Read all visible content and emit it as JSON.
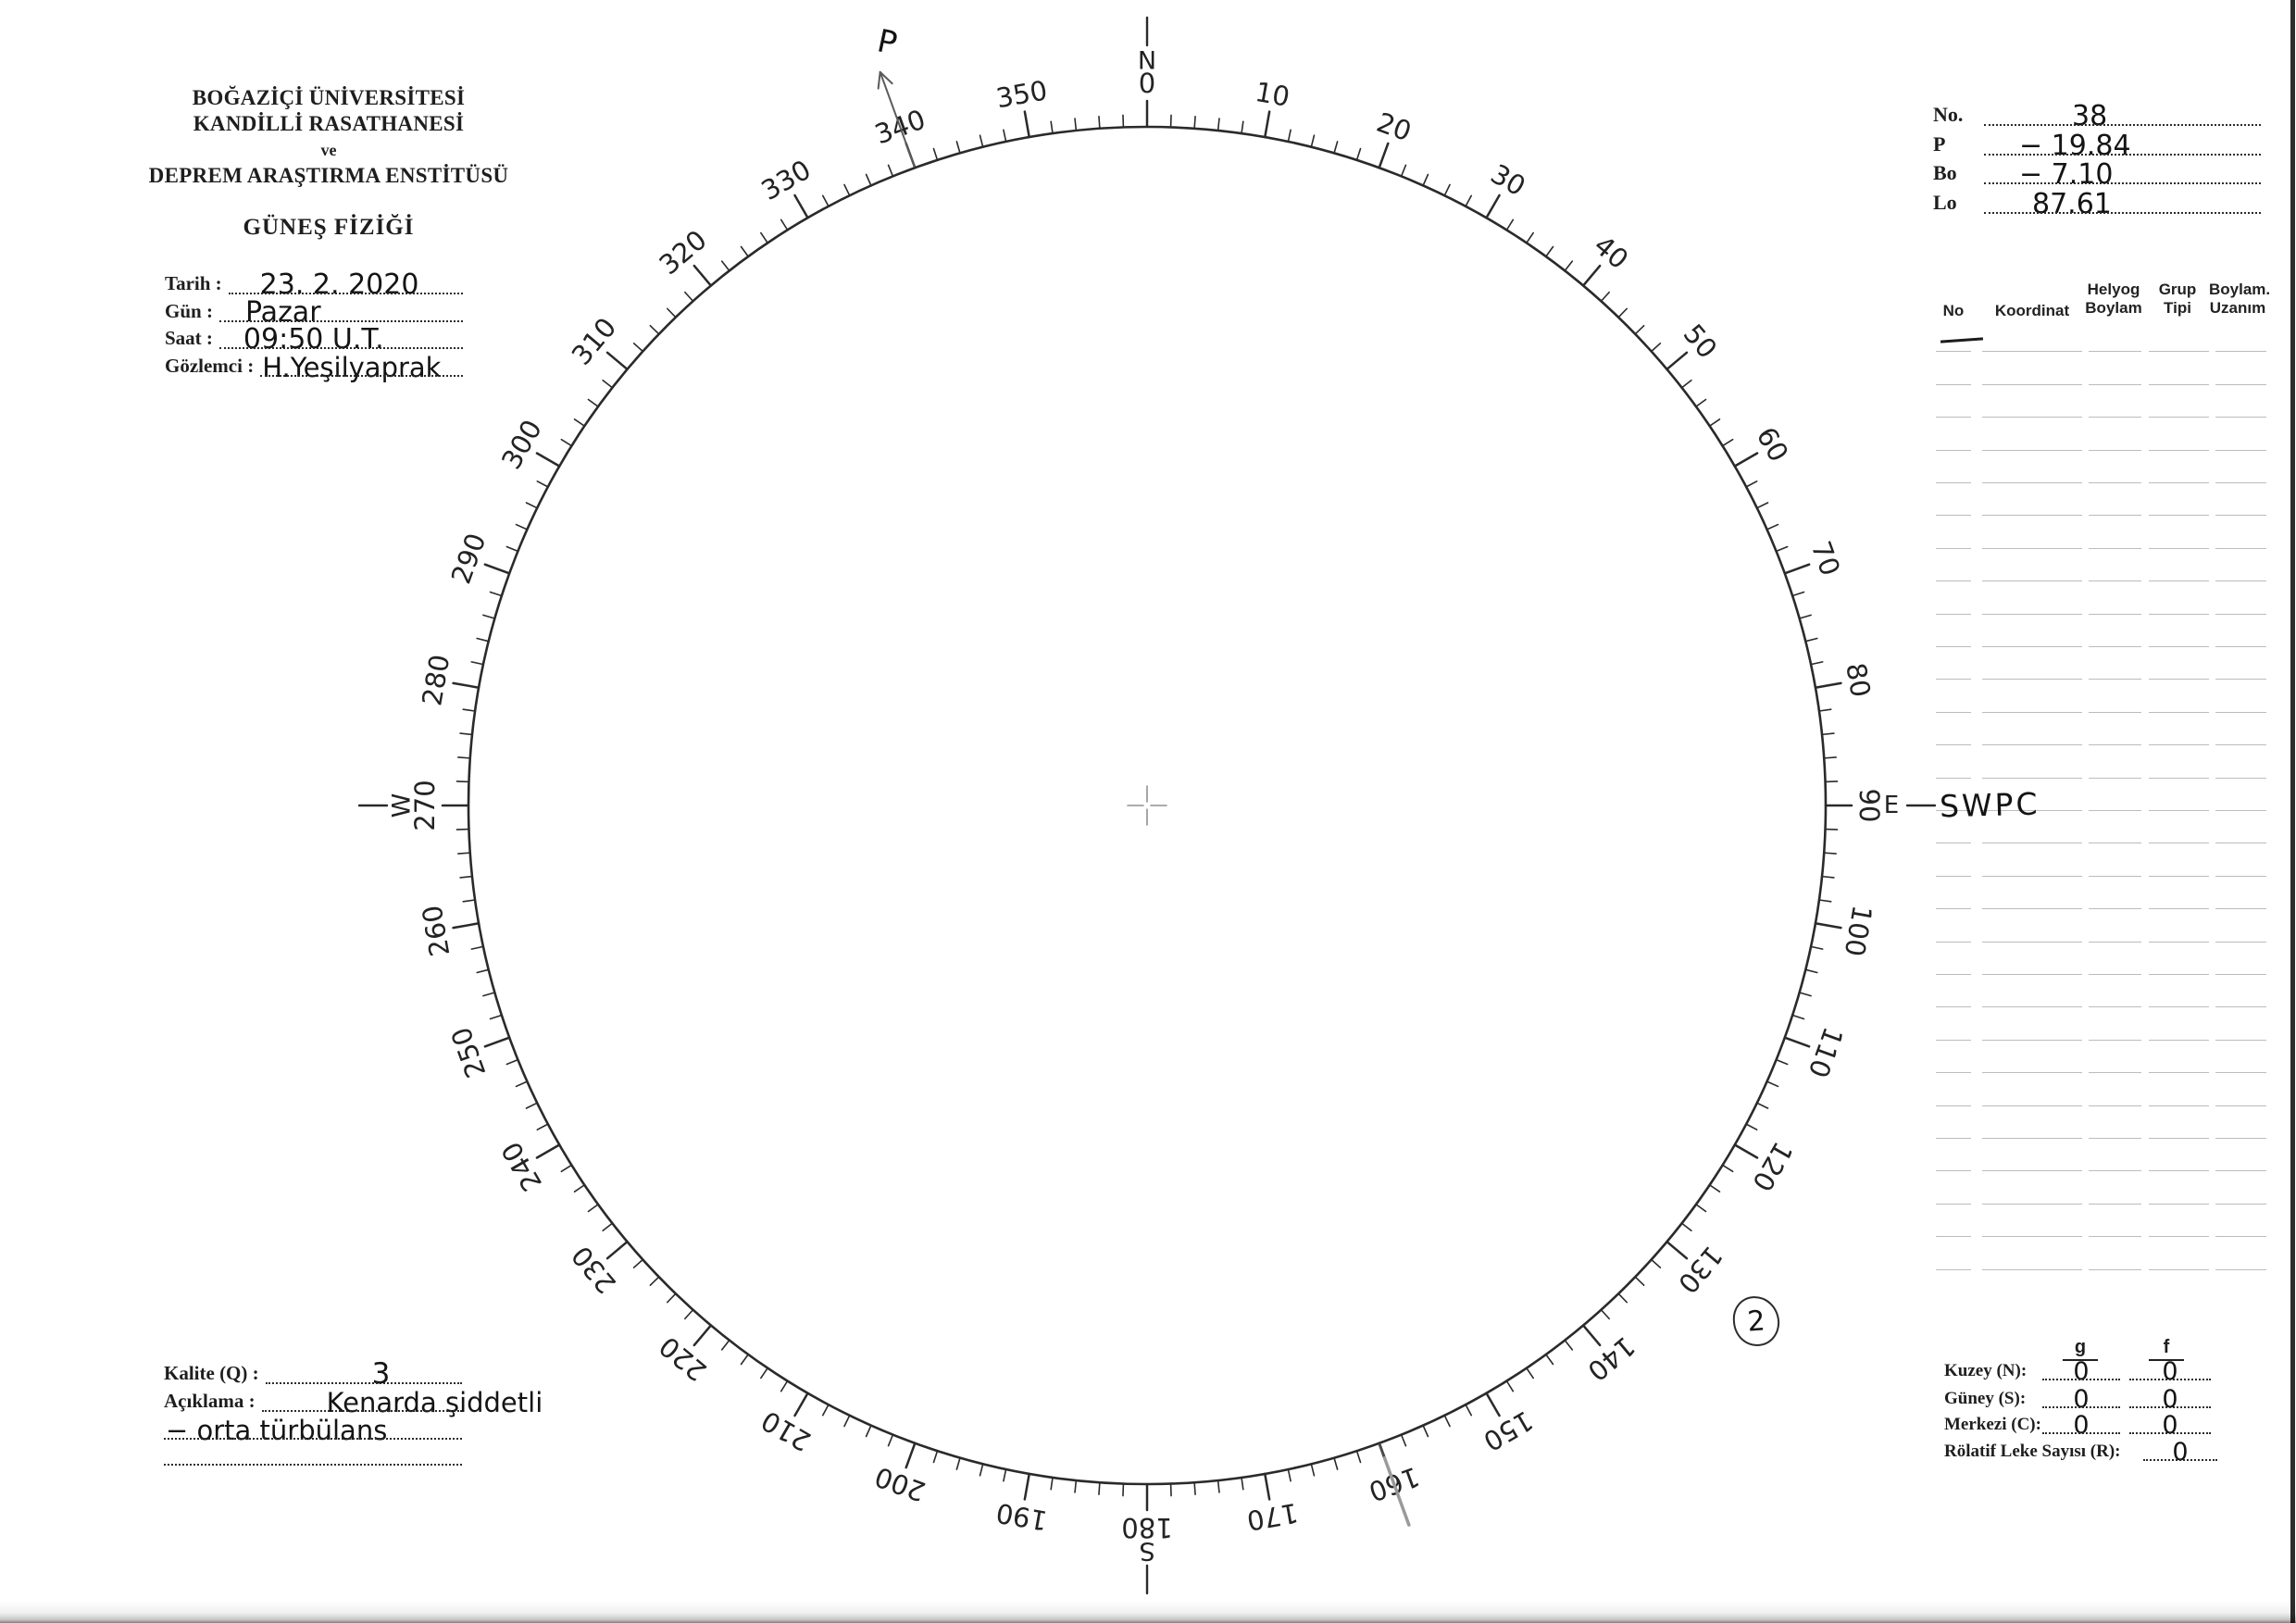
{
  "institution": {
    "line1": "BOĞAZİÇİ ÜNİVERSİTESİ",
    "line2": "KANDİLLİ RASATHANESİ",
    "line3": "ve",
    "line4": "DEPREM ARAŞTIRMA ENSTİTÜSÜ",
    "department": "GÜNEŞ FİZİĞİ"
  },
  "observation": {
    "fields": [
      {
        "label": "Tarih :",
        "value": "23. 2. 2020"
      },
      {
        "label": "Gün :",
        "value": "Pazar"
      },
      {
        "label": "Saat :",
        "value": "09:50 U.T."
      },
      {
        "label": "Gözlemci :",
        "value": "H.Yeşilyaprak"
      }
    ]
  },
  "ephemeris": {
    "fields": [
      {
        "label": "No.",
        "value": "38"
      },
      {
        "label": "P",
        "value": "− 19.84"
      },
      {
        "label": "Bo",
        "value": "− 7.10"
      },
      {
        "label": "Lo",
        "value": "87.61"
      }
    ]
  },
  "groups_table": {
    "headers": [
      "No",
      "Koordinat",
      "Helyog\nBoylam",
      "Grup\nTipi",
      "Boylam.\nUzanım"
    ],
    "row_count": 29,
    "row1_no_mark": "—"
  },
  "quality": {
    "label": "Kalite (Q) :",
    "value": "3",
    "note_label": "Açıklama :",
    "note_line1": "Kenarda şiddetli",
    "note_line2": "− orta türbülans"
  },
  "counts": {
    "col_headers": [
      "g",
      "f"
    ],
    "rows": [
      {
        "label": "Kuzey (N):",
        "g": "0",
        "f": "0"
      },
      {
        "label": "Güney (S):",
        "g": "0",
        "f": "0"
      },
      {
        "label": "Merkezi (C):",
        "g": "0",
        "f": "0"
      },
      {
        "label": "Rölatif Leke Sayısı (R):",
        "f": "0"
      }
    ]
  },
  "dial": {
    "degree_labels": [
      "0",
      "10",
      "20",
      "30",
      "40",
      "50",
      "60",
      "70",
      "80",
      "90",
      "100",
      "110",
      "120",
      "130",
      "140",
      "150",
      "160",
      "170",
      "180",
      "190",
      "200",
      "210",
      "220",
      "230",
      "240",
      "250",
      "260",
      "270",
      "280",
      "290",
      "300",
      "310",
      "320",
      "330",
      "340",
      "350"
    ],
    "compass": {
      "north": "N",
      "east": "E",
      "south": "S",
      "west": "W"
    },
    "annotations": {
      "p_mark": "P",
      "east_note": "SWPC",
      "group_count_mark": "2"
    }
  }
}
